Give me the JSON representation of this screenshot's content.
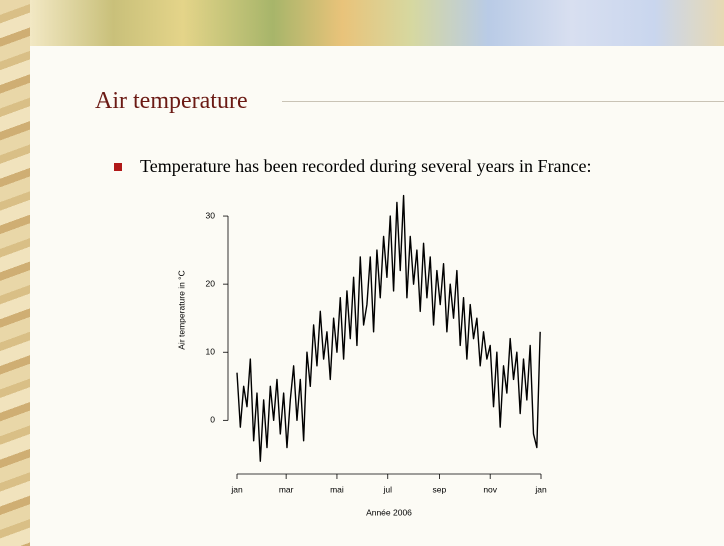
{
  "slide": {
    "title": "Air temperature",
    "bullet": "Temperature has been recorded during several years in France:"
  },
  "chart_data": {
    "type": "line",
    "color": "#000000",
    "xlabel": "Année 2006",
    "ylabel": "Air temperature in °C",
    "x": [
      0,
      4,
      8,
      12,
      16,
      20,
      24,
      28,
      32,
      36,
      40,
      44,
      48,
      52,
      56,
      60,
      64,
      68,
      72,
      76,
      80,
      84,
      88,
      92,
      96,
      100,
      104,
      108,
      112,
      116,
      120,
      124,
      128,
      132,
      136,
      140,
      144,
      148,
      152,
      156,
      160,
      164,
      168,
      172,
      176,
      180,
      184,
      188,
      192,
      196,
      200,
      204,
      208,
      212,
      216,
      220,
      224,
      228,
      232,
      236,
      240,
      244,
      248,
      252,
      256,
      260,
      264,
      268,
      272,
      276,
      280,
      284,
      288,
      292,
      296,
      300,
      304,
      308,
      312,
      316,
      320,
      324,
      328,
      332,
      336,
      340,
      344,
      348,
      352,
      356,
      360,
      364
    ],
    "values": [
      7,
      -1,
      5,
      2,
      9,
      -3,
      4,
      -6,
      3,
      -4,
      5,
      0,
      6,
      -2,
      4,
      -4,
      3,
      8,
      0,
      6,
      -3,
      10,
      5,
      14,
      8,
      16,
      9,
      13,
      6,
      15,
      10,
      18,
      9,
      19,
      12,
      21,
      11,
      24,
      14,
      17,
      24,
      13,
      25,
      18,
      27,
      21,
      30,
      19,
      32,
      22,
      33,
      18,
      27,
      20,
      25,
      16,
      26,
      18,
      24,
      14,
      22,
      17,
      23,
      13,
      20,
      15,
      22,
      11,
      18,
      9,
      17,
      12,
      15,
      8,
      13,
      9,
      11,
      2,
      10,
      -1,
      8,
      4,
      12,
      6,
      10,
      1,
      9,
      3,
      11,
      -2,
      -4,
      13
    ],
    "xlim": [
      0,
      365
    ],
    "xticks": [
      {
        "value": 0,
        "label": "jan"
      },
      {
        "value": 59,
        "label": "mar"
      },
      {
        "value": 120,
        "label": "mai"
      },
      {
        "value": 181,
        "label": "jul"
      },
      {
        "value": 243,
        "label": "sep"
      },
      {
        "value": 304,
        "label": "nov"
      },
      {
        "value": 365,
        "label": "jan"
      }
    ],
    "ylim": [
      -7,
      35
    ],
    "yticks": [
      0,
      10,
      20,
      30
    ]
  }
}
